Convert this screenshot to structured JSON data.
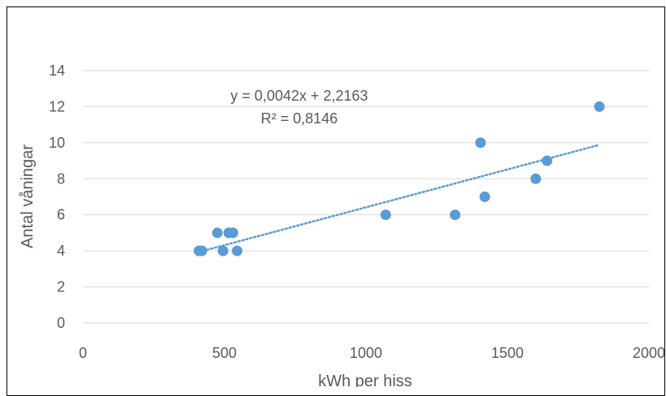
{
  "chart_data": {
    "type": "scatter",
    "title": "",
    "xlabel": "kWh per hiss",
    "ylabel": "Antal våningar",
    "xlim": [
      0,
      2000
    ],
    "ylim": [
      0,
      14
    ],
    "x_ticks": [
      0,
      500,
      1000,
      1500,
      2000
    ],
    "y_ticks": [
      0,
      2,
      4,
      6,
      8,
      10,
      12,
      14
    ],
    "grid": "horizontal",
    "series": [
      {
        "points": [
          {
            "x": 410,
            "y": 4
          },
          {
            "x": 420,
            "y": 4
          },
          {
            "x": 495,
            "y": 4
          },
          {
            "x": 545,
            "y": 4
          },
          {
            "x": 475,
            "y": 5
          },
          {
            "x": 515,
            "y": 5
          },
          {
            "x": 530,
            "y": 5
          },
          {
            "x": 1070,
            "y": 6
          },
          {
            "x": 1315,
            "y": 6
          },
          {
            "x": 1420,
            "y": 7
          },
          {
            "x": 1600,
            "y": 8
          },
          {
            "x": 1640,
            "y": 9
          },
          {
            "x": 1405,
            "y": 10
          },
          {
            "x": 1825,
            "y": 12
          }
        ]
      }
    ],
    "trendline": {
      "type": "linear",
      "slope": 0.0042,
      "intercept": 2.2163,
      "x_range": [
        410,
        1825
      ],
      "equation_label": "y = 0,0042x + 2,2163",
      "r2_label": "R² = 0,8146"
    },
    "colors": {
      "marker": "#5b9bd5",
      "trendline": "#5b9bd5",
      "grid": "#d9d9d9",
      "text": "#595959"
    }
  }
}
